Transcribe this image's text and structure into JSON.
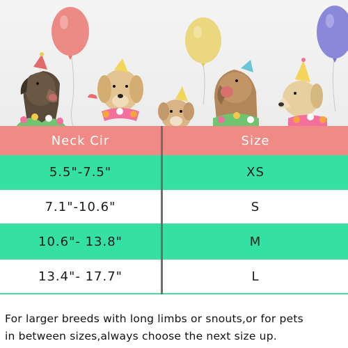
{
  "banner": {
    "scene": "party-dogs-with-balloons",
    "balloon_colors": [
      "#ec8b86",
      "#ebd77e",
      "#8c88d9"
    ]
  },
  "colors": {
    "header_row": "#ef8a84",
    "row_alt": "#35e0a4",
    "row_plain": "#ffffff",
    "separator": "#49dba1",
    "divider": "#6e6e6e"
  },
  "table": {
    "headers": [
      "Neck Cir",
      "Size"
    ],
    "rows": [
      {
        "neck": "5.5\"-7.5\"",
        "size": "XS"
      },
      {
        "neck": "7.1\"-10.6\"",
        "size": "S"
      },
      {
        "neck": "10.6\"- 13.8\"",
        "size": "M"
      },
      {
        "neck": "13.4\"- 17.7\"",
        "size": "L"
      }
    ]
  },
  "note": {
    "line1": "For larger breeds with long limbs or snouts,or for pets",
    "line2": "in between sizes,always choose the next  size up."
  }
}
